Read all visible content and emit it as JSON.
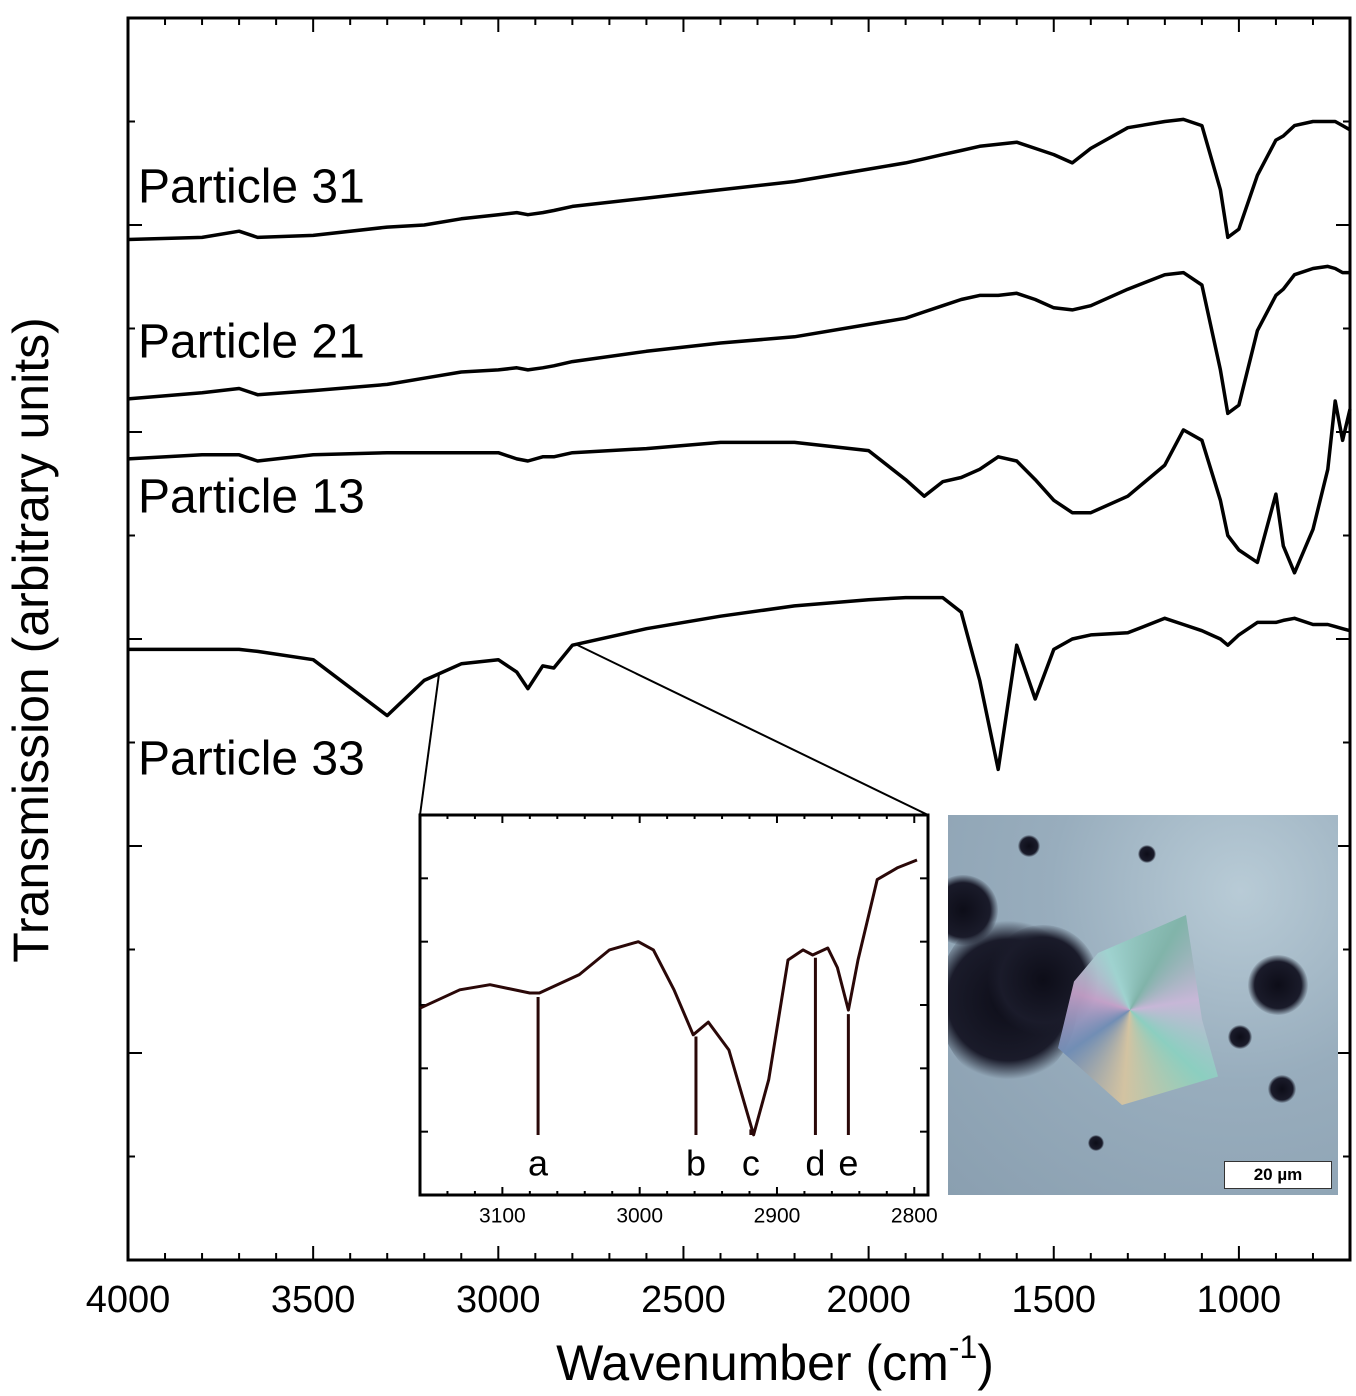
{
  "chart_data": [
    {
      "type": "line",
      "xlabel": [
        "Wavenumber (cm",
        "-1",
        ")"
      ],
      "ylabel": "Transmission (arbitrary units)",
      "x": [
        4000,
        3800,
        3700,
        3650,
        3500,
        3300,
        3200,
        3100,
        3000,
        2950,
        2920,
        2880,
        2850,
        2800,
        2600,
        2400,
        2200,
        2000,
        1900,
        1850,
        1800,
        1750,
        1700,
        1650,
        1600,
        1550,
        1500,
        1450,
        1400,
        1300,
        1200,
        1150,
        1100,
        1050,
        1030,
        1000,
        950,
        900,
        880,
        850,
        800,
        760,
        740,
        720,
        700
      ],
      "series": [
        {
          "name": "Particle 31",
          "color": "#000000",
          "values": [
            49.3,
            49.4,
            49.7,
            49.4,
            49.5,
            49.9,
            50.0,
            50.3,
            50.5,
            50.6,
            50.5,
            50.6,
            50.7,
            50.9,
            51.3,
            51.7,
            52.1,
            52.7,
            53.0,
            53.2,
            53.4,
            53.6,
            53.8,
            53.9,
            54.0,
            53.7,
            53.4,
            53.0,
            53.7,
            54.7,
            55.0,
            55.1,
            54.8,
            51.7,
            49.4,
            49.8,
            52.4,
            54.1,
            54.3,
            54.8,
            55.0,
            55.0,
            55.0,
            54.8,
            54.6
          ]
        },
        {
          "name": "Particle 21",
          "color": "#000000",
          "values": [
            41.6,
            41.9,
            42.1,
            41.8,
            42.0,
            42.3,
            42.6,
            42.9,
            43.0,
            43.1,
            43.0,
            43.1,
            43.2,
            43.4,
            43.9,
            44.3,
            44.6,
            45.2,
            45.5,
            45.8,
            46.1,
            46.4,
            46.6,
            46.6,
            46.7,
            46.4,
            46.0,
            45.9,
            46.1,
            46.9,
            47.6,
            47.7,
            47.1,
            43.0,
            40.9,
            41.3,
            44.9,
            46.6,
            46.9,
            47.6,
            47.9,
            48.0,
            47.9,
            47.7,
            47.7
          ]
        },
        {
          "name": "Particle 13",
          "color": "#000000",
          "values": [
            38.7,
            38.9,
            38.9,
            38.6,
            38.9,
            39.0,
            39.0,
            39.0,
            39.0,
            38.7,
            38.6,
            38.8,
            38.8,
            39.0,
            39.2,
            39.5,
            39.5,
            39.1,
            37.7,
            36.9,
            37.6,
            37.8,
            38.2,
            38.8,
            38.6,
            37.7,
            36.7,
            36.1,
            36.1,
            36.9,
            38.4,
            40.1,
            39.6,
            36.7,
            35.0,
            34.3,
            33.7,
            37.0,
            34.5,
            33.2,
            35.3,
            38.2,
            41.5,
            39.6,
            41.1
          ]
        },
        {
          "name": "Particle 33",
          "color": "#000000",
          "values": [
            29.5,
            29.5,
            29.5,
            29.4,
            29.0,
            26.3,
            28.0,
            28.8,
            29.0,
            28.4,
            27.6,
            28.7,
            28.6,
            29.7,
            30.5,
            31.1,
            31.6,
            31.9,
            32.0,
            32.0,
            32.0,
            31.3,
            28.0,
            23.7,
            29.7,
            27.1,
            29.5,
            30.0,
            30.2,
            30.3,
            31.0,
            30.7,
            30.4,
            30.0,
            29.7,
            30.2,
            30.8,
            30.8,
            30.9,
            31.0,
            30.7,
            30.7,
            30.6,
            30.5,
            30.4
          ]
        }
      ],
      "xlim": [
        4000,
        700
      ],
      "xticks": [
        4000,
        3500,
        3000,
        2500,
        2000,
        1500,
        1000
      ],
      "xminorticks": [
        3900,
        3800,
        3700,
        3600,
        3400,
        3300,
        3200,
        3100,
        2900,
        2800,
        2700,
        2600,
        2400,
        2300,
        2200,
        2100,
        1900,
        1800,
        1700,
        1600,
        1400,
        1300,
        1200,
        1100,
        900,
        800
      ],
      "ylim": [
        0,
        60
      ],
      "yticks": [
        0,
        10,
        20,
        30,
        40,
        50,
        60
      ],
      "yminorticks": [
        5,
        15,
        25,
        35,
        45,
        55
      ]
    },
    {
      "type": "line",
      "x": [
        3160,
        3131,
        3109,
        3080,
        3073,
        3044,
        3022,
        3001,
        2990,
        2975,
        2961,
        2950,
        2935,
        2917,
        2906,
        2892,
        2881,
        2874,
        2863,
        2856,
        2848,
        2841,
        2827,
        2812,
        2798
      ],
      "series": [
        {
          "color": "#2a0808",
          "values": [
            2.95,
            3.24,
            3.32,
            3.19,
            3.19,
            3.48,
            3.87,
            4.0,
            3.87,
            3.24,
            2.53,
            2.73,
            2.29,
            0.95,
            1.82,
            3.71,
            3.87,
            3.79,
            3.9,
            3.59,
            2.92,
            3.71,
            4.98,
            5.17,
            5.29
          ]
        }
      ],
      "xlim": [
        3160,
        2790
      ],
      "xticks": [
        3100,
        3000,
        2900,
        2800
      ],
      "xminorticks": [
        3140,
        3120,
        3080,
        3060,
        3040,
        3020,
        2980,
        2960,
        2940,
        2920,
        2880,
        2860,
        2840,
        2820
      ],
      "ylim": [
        0,
        6
      ],
      "yticks": [
        0,
        1,
        2,
        3,
        4,
        5,
        6
      ],
      "peaks": [
        {
          "label": "a",
          "x": 3074
        },
        {
          "label": "b",
          "x": 2959
        },
        {
          "label": "c",
          "x": 2919
        },
        {
          "label": "d",
          "x": 2872
        },
        {
          "label": "e",
          "x": 2848
        }
      ]
    }
  ],
  "image": {
    "scale_bar": "20 µm"
  }
}
